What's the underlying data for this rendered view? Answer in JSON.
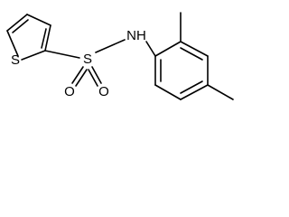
{
  "nodes": [
    {
      "label": "S"
    },
    {
      "label": "S"
    },
    {
      "label": "O"
    },
    {
      "label": "O"
    },
    {
      "label": "NH"
    }
  ]
}
